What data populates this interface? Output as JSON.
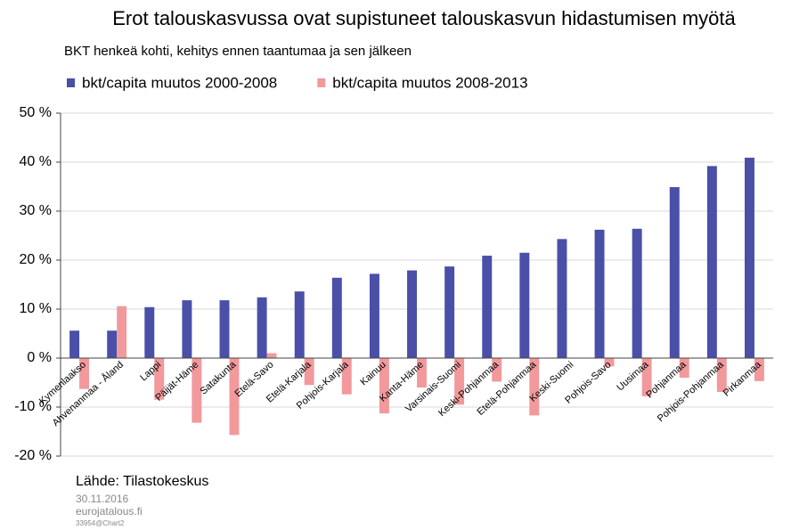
{
  "chart_data": {
    "type": "bar",
    "title": "Erot talouskasvussa ovat supistuneet talouskasvun hidastumisen myötä",
    "subtitle": "BKT henkeä kohti, kehitys ennen taantumaa ja sen jälkeen",
    "categories": [
      "Kymenlaakso",
      "Ahvenanmaa - Åland",
      "Lappi",
      "Päijät-Häme",
      "Satakunta",
      "Etelä-Savo",
      "Etelä-Karjala",
      "Pohjois-Karjala",
      "Kainuu",
      "Kanta-Häme",
      "Varsinais-Suomi",
      "Keski-Pohjanmaa",
      "Etelä-Pohjanmaa",
      "Keski-Suomi",
      "Pohjois-Savo",
      "Uusimaa",
      "Pohjanmaa",
      "Pohjois-Pohjanmaa",
      "Pirkanmaa"
    ],
    "series": [
      {
        "name": "bkt/capita muutos 2000-2008",
        "color": "#4a4fa8",
        "values": [
          5.6,
          5.6,
          10.4,
          11.8,
          11.8,
          12.4,
          13.6,
          16.4,
          17.2,
          17.9,
          18.7,
          20.9,
          21.5,
          24.3,
          26.2,
          26.4,
          34.9,
          39.2,
          40.9
        ]
      },
      {
        "name": "bkt/capita muutos 2008-2013",
        "color": "#f2999c",
        "values": [
          -6.3,
          10.6,
          -8.5,
          -13.2,
          -15.7,
          1.0,
          -5.5,
          -7.4,
          -11.3,
          -6.0,
          -9.5,
          -4.8,
          -11.7,
          0,
          -1.7,
          -7.8,
          -4.0,
          -6.9,
          -4.7
        ]
      }
    ],
    "ylim": [
      -20,
      50
    ],
    "yticks": [
      {
        "value": -20,
        "label": "-20 %"
      },
      {
        "value": -10,
        "label": "-10 %"
      },
      {
        "value": 0,
        "label": "0 %"
      },
      {
        "value": 10,
        "label": "10 %"
      },
      {
        "value": 20,
        "label": "20 %"
      },
      {
        "value": 30,
        "label": "30 %"
      },
      {
        "value": 40,
        "label": "40 %"
      },
      {
        "value": 50,
        "label": "50 %"
      }
    ],
    "grid": true,
    "legend": "top",
    "source": "Lähde: Tilastokeskus",
    "date": "30.11.2016",
    "site": "eurojatalous.fi",
    "id": "33954@Chart2"
  }
}
